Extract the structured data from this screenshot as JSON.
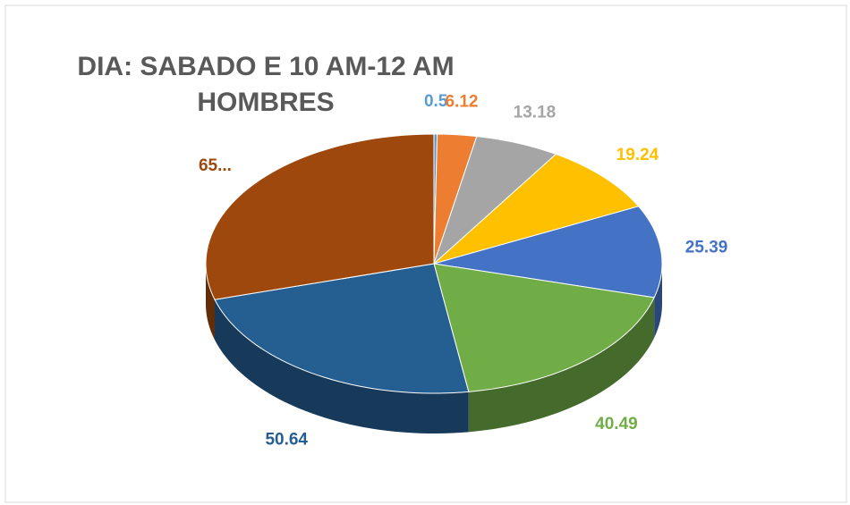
{
  "chart_data": {
    "type": "pie",
    "title": "DIA: SABADO E 10 AM-12 AM",
    "subtitle": "HOMBRES",
    "categories": [
      null,
      null,
      null,
      null,
      null,
      null,
      null,
      null
    ],
    "values": [
      0.5,
      6.12,
      13.18,
      19.24,
      25.39,
      40.49,
      50.64,
      65
    ],
    "value_labels": [
      "0.5",
      "6.12",
      "13.18",
      "19.24",
      "25.39",
      "40.49",
      "50.64",
      "65..."
    ],
    "colors": [
      "#5b9bd5",
      "#ed7d31",
      "#a5a5a5",
      "#ffc000",
      "#4472c4",
      "#70ad47",
      "#255e91",
      "#9e480e"
    ]
  }
}
